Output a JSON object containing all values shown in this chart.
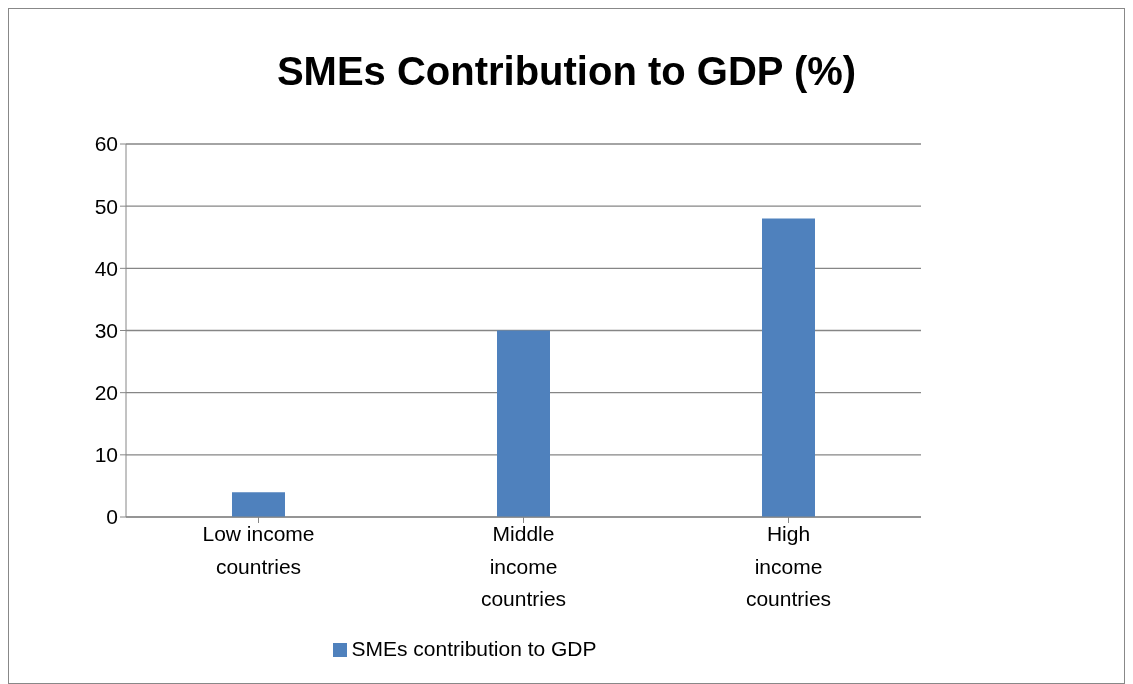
{
  "chart_data": {
    "type": "bar",
    "title": "SMEs Contribution to GDP (%)",
    "categories": [
      "Low income countries",
      "Middle income countries",
      "High income countries"
    ],
    "series": [
      {
        "name": "SMEs contribution to GDP",
        "color": "#4f81bd",
        "values": [
          4,
          30,
          48
        ]
      }
    ],
    "ylim": [
      0,
      60
    ],
    "yticks": [
      0,
      10,
      20,
      30,
      40,
      50,
      60
    ],
    "grid": "y",
    "legend": "bottom"
  }
}
